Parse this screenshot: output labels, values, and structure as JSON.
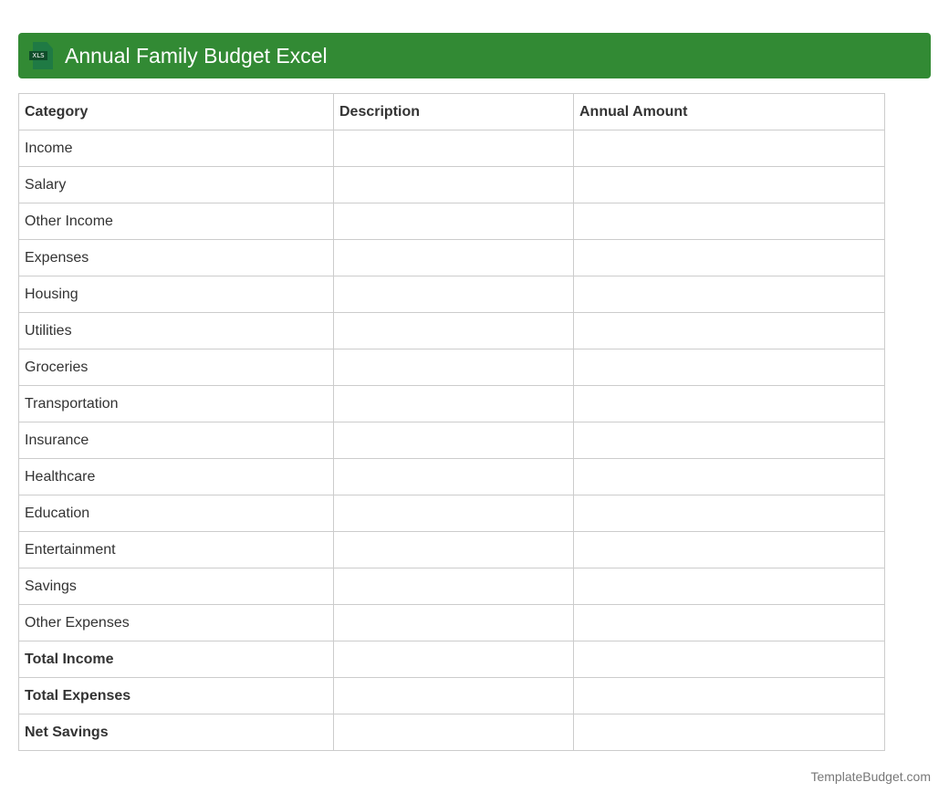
{
  "header": {
    "title": "Annual Family Budget Excel",
    "icon": "xls-file-icon",
    "icon_label": "XLS",
    "color": "#328a34"
  },
  "table": {
    "columns": [
      "Category",
      "Description",
      "Annual Amount"
    ],
    "rows": [
      {
        "category": "Income",
        "bold": false
      },
      {
        "category": "Salary",
        "bold": false
      },
      {
        "category": "Other Income",
        "bold": false
      },
      {
        "category": "Expenses",
        "bold": false
      },
      {
        "category": "Housing",
        "bold": false
      },
      {
        "category": "Utilities",
        "bold": false
      },
      {
        "category": "Groceries",
        "bold": false
      },
      {
        "category": "Transportation",
        "bold": false
      },
      {
        "category": "Insurance",
        "bold": false
      },
      {
        "category": "Healthcare",
        "bold": false
      },
      {
        "category": "Education",
        "bold": false
      },
      {
        "category": "Entertainment",
        "bold": false
      },
      {
        "category": "Savings",
        "bold": false
      },
      {
        "category": "Other Expenses",
        "bold": false
      },
      {
        "category": "Total Income",
        "bold": true
      },
      {
        "category": "Total Expenses",
        "bold": true
      },
      {
        "category": "Net Savings",
        "bold": true
      }
    ]
  },
  "footer": {
    "text": "TemplateBudget.com"
  }
}
